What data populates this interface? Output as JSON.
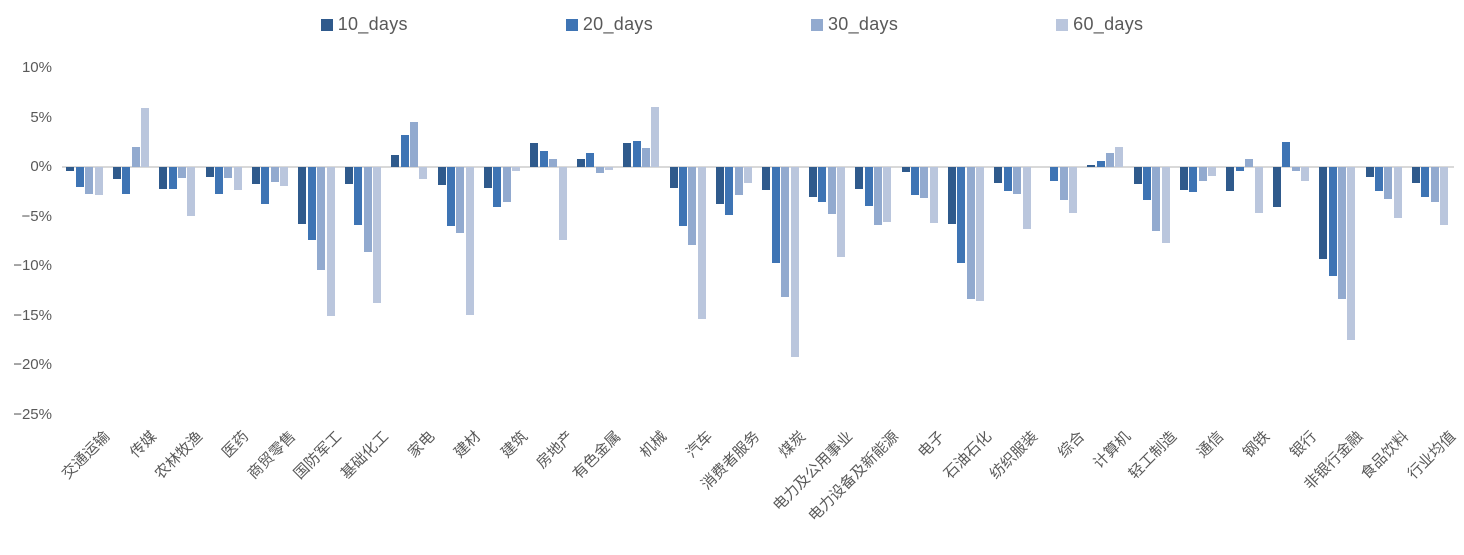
{
  "chart_data": {
    "type": "bar",
    "title": "",
    "xlabel": "",
    "ylabel": "",
    "unit": "%",
    "grid": false,
    "legend_position": "top",
    "ylim": [
      -25,
      10
    ],
    "y_ticks": [
      {
        "label": "10%",
        "value": 10
      },
      {
        "label": "5%",
        "value": 5
      },
      {
        "label": "0%",
        "value": 0
      },
      {
        "label": "−5%",
        "value": -5
      },
      {
        "label": "−10%",
        "value": -10
      },
      {
        "label": "−15%",
        "value": -15
      },
      {
        "label": "−20%",
        "value": -20
      },
      {
        "label": "−25%",
        "value": -25
      }
    ],
    "categories": [
      "交通运输",
      "传媒",
      "农林牧渔",
      "医药",
      "商贸零售",
      "国防军工",
      "基础化工",
      "家电",
      "建材",
      "建筑",
      "房地产",
      "有色金属",
      "机械",
      "汽车",
      "消费者服务",
      "煤炭",
      "电力及公用事业",
      "电力设备及新能源",
      "电子",
      "石油石化",
      "纺织服装",
      "综合",
      "计算机",
      "轻工制造",
      "通信",
      "钢铁",
      "银行",
      "非银行金融",
      "食品饮料",
      "行业均值"
    ],
    "series": [
      {
        "name": "10_days",
        "color": "#2F5A8C",
        "values": [
          -0.4,
          -1.2,
          -2.2,
          -1.0,
          -1.7,
          -5.7,
          -1.7,
          1.2,
          -1.8,
          -2.1,
          2.4,
          0.8,
          2.4,
          -2.1,
          -3.7,
          -2.3,
          -3.0,
          -2.2,
          -0.5,
          -5.7,
          -1.6,
          0.0,
          0.2,
          -1.7,
          -2.3,
          -2.4,
          -4.0,
          -9.3,
          -1.0,
          -1.6
        ]
      },
      {
        "name": "20_days",
        "color": "#3E74B4",
        "values": [
          -2.0,
          -2.7,
          -2.2,
          -2.7,
          -3.7,
          -7.3,
          -5.8,
          3.2,
          -5.9,
          -4.0,
          1.6,
          1.4,
          2.6,
          -5.9,
          -4.8,
          -9.7,
          -3.5,
          -3.9,
          -2.8,
          -9.7,
          -2.4,
          -1.4,
          0.6,
          -3.3,
          -2.5,
          -0.4,
          2.5,
          -11.0,
          -2.4,
          -3.0
        ]
      },
      {
        "name": "30_days",
        "color": "#92AACF",
        "values": [
          -2.7,
          2.0,
          -1.1,
          -1.1,
          -1.5,
          -10.4,
          -8.6,
          4.6,
          -6.6,
          -3.5,
          0.8,
          -0.6,
          1.9,
          -7.9,
          -2.8,
          -13.1,
          -4.7,
          -5.8,
          -3.1,
          -13.3,
          -2.7,
          -3.3,
          1.4,
          -6.4,
          -1.4,
          0.8,
          -0.4,
          -13.3,
          -3.2,
          -3.5
        ]
      },
      {
        "name": "60_days",
        "color": "#BAC6DD",
        "values": [
          -2.8,
          6.0,
          -4.9,
          -2.3,
          -1.9,
          -15.0,
          -13.7,
          -1.2,
          -14.9,
          -0.4,
          -7.3,
          -0.3,
          6.1,
          -15.3,
          -1.6,
          -19.1,
          -9.1,
          -5.5,
          -5.6,
          -13.5,
          -6.2,
          -4.6,
          2.0,
          -7.7,
          -0.9,
          -4.6,
          -1.4,
          -17.4,
          -5.1,
          -5.8
        ]
      }
    ],
    "colors": {
      "axis_text": "#595959",
      "zero_line": "#D9D9D9",
      "background": "#FFFFFF"
    }
  }
}
